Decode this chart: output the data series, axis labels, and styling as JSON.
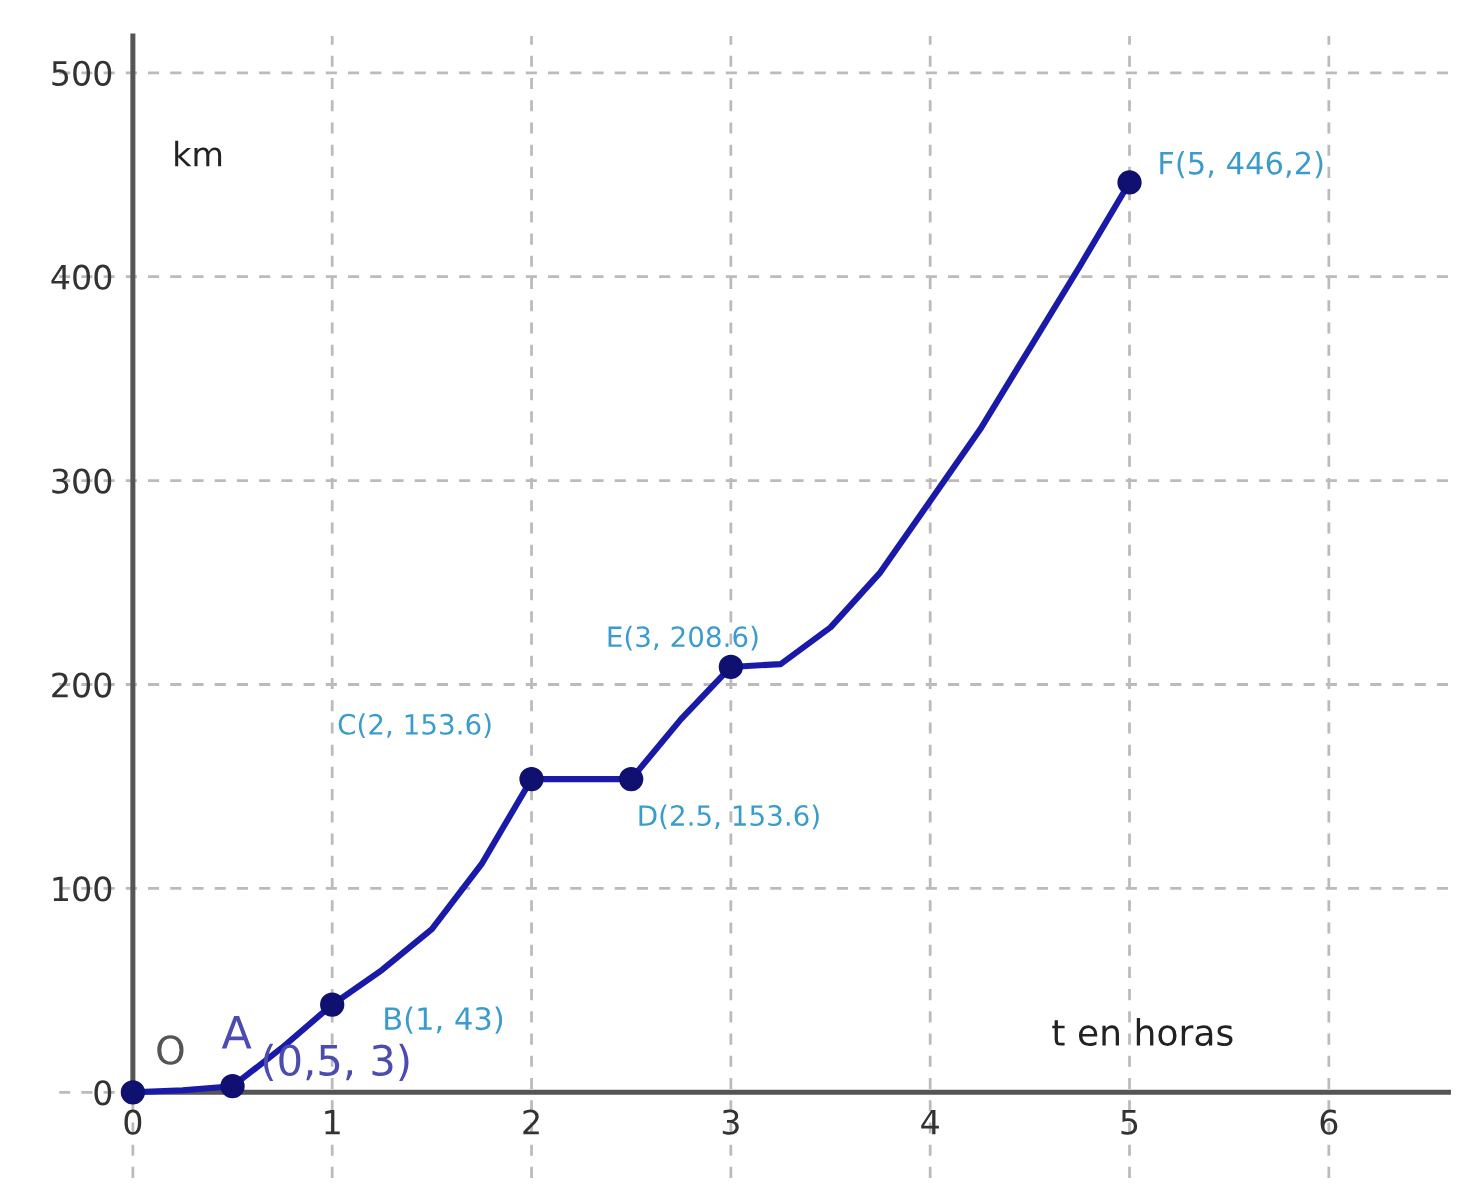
{
  "chart_data": {
    "type": "line",
    "xlabel": "t en horas",
    "ylabel": "km",
    "xlim": [
      -0.37,
      6.6
    ],
    "ylim": [
      -42,
      518
    ],
    "xticks": [
      0,
      1,
      2,
      3,
      4,
      5,
      6
    ],
    "yticks": [
      0,
      100,
      200,
      300,
      400,
      500
    ],
    "grid": true,
    "line_style": "solid",
    "series": [
      {
        "type": "line",
        "color": "#1a1aa8",
        "marker": "none",
        "x": [
          0,
          0.25,
          0.5,
          0.75,
          1,
          1.25,
          1.5,
          1.75,
          2,
          2.5,
          2.75,
          3,
          3.25,
          3.5,
          3.75,
          4,
          4.25,
          4.5,
          4.75,
          5
        ],
        "values": [
          0,
          1,
          3,
          22,
          43,
          60,
          80,
          112,
          153.6,
          153.6,
          183,
          208.6,
          210,
          228,
          255,
          290,
          325,
          365,
          405,
          446.2
        ]
      },
      {
        "type": "scatter",
        "color": "#101070",
        "marker": "circle",
        "x": [
          0,
          0.5,
          1,
          2,
          2.5,
          3,
          5
        ],
        "values": [
          0,
          3,
          43,
          153.6,
          153.6,
          208.6,
          446.2
        ]
      }
    ],
    "annotations": [
      {
        "text": "O",
        "x": 0,
        "y": 0
      },
      {
        "text": "A",
        "x": 0.5,
        "y": 3
      },
      {
        "text": "(0,5, 3)",
        "x": 0.5,
        "y": 3
      },
      {
        "text": "B(1, 43)",
        "x": 1,
        "y": 43
      },
      {
        "text": "C(2, 153.6)",
        "x": 2,
        "y": 153.6
      },
      {
        "text": "D(2.5, 153.6)",
        "x": 2.5,
        "y": 153.6
      },
      {
        "text": "E(3, 208.6)",
        "x": 3,
        "y": 208.6
      },
      {
        "text": "F(5, 446,2)",
        "x": 5,
        "y": 446.2
      }
    ]
  }
}
